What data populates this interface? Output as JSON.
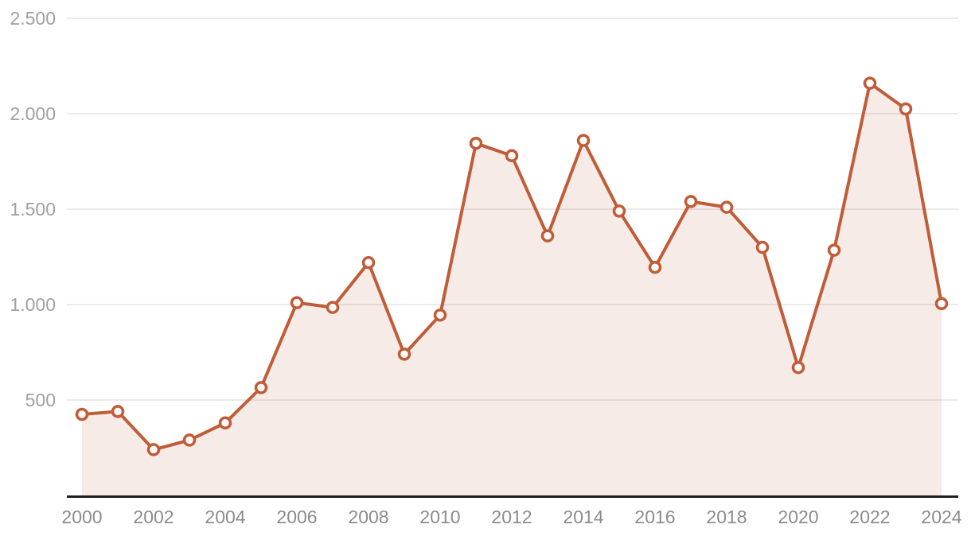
{
  "chart_data": {
    "type": "line",
    "subtype": "area-line-with-markers",
    "title": "",
    "xlabel": "",
    "ylabel": "",
    "x": [
      2000,
      2001,
      2002,
      2003,
      2004,
      2005,
      2006,
      2007,
      2008,
      2009,
      2010,
      2011,
      2012,
      2013,
      2014,
      2015,
      2016,
      2017,
      2018,
      2019,
      2020,
      2021,
      2022,
      2023,
      2024
    ],
    "values": [
      425,
      440,
      240,
      290,
      380,
      565,
      1010,
      985,
      1220,
      740,
      945,
      1845,
      1780,
      1360,
      1860,
      1490,
      1195,
      1540,
      1510,
      1300,
      670,
      1285,
      2160,
      2025,
      1005
    ],
    "ylim": [
      0,
      2500
    ],
    "y_ticks": [
      {
        "value": 500,
        "label": "500"
      },
      {
        "value": 1000,
        "label": "1.000"
      },
      {
        "value": 1500,
        "label": "1.500"
      },
      {
        "value": 2000,
        "label": "2.000"
      },
      {
        "value": 2500,
        "label": "2.500"
      }
    ],
    "x_tick_labels": [
      "2000",
      "2002",
      "2004",
      "2006",
      "2008",
      "2010",
      "2012",
      "2014",
      "2016",
      "2018",
      "2020",
      "2022",
      "2024"
    ],
    "grid": true,
    "legend": false,
    "colors": {
      "line": "#c05c38",
      "marker_fill": "#ffffff",
      "marker_stroke": "#c05c38",
      "area_fill": "#c05c38",
      "area_opacity": 0.12,
      "gridline": "#e3e3e3",
      "axis_line": "#1f1f1f",
      "y_tick_text": "#a0a0a0",
      "x_tick_text": "#8c8c8c",
      "background": "#ffffff"
    }
  }
}
